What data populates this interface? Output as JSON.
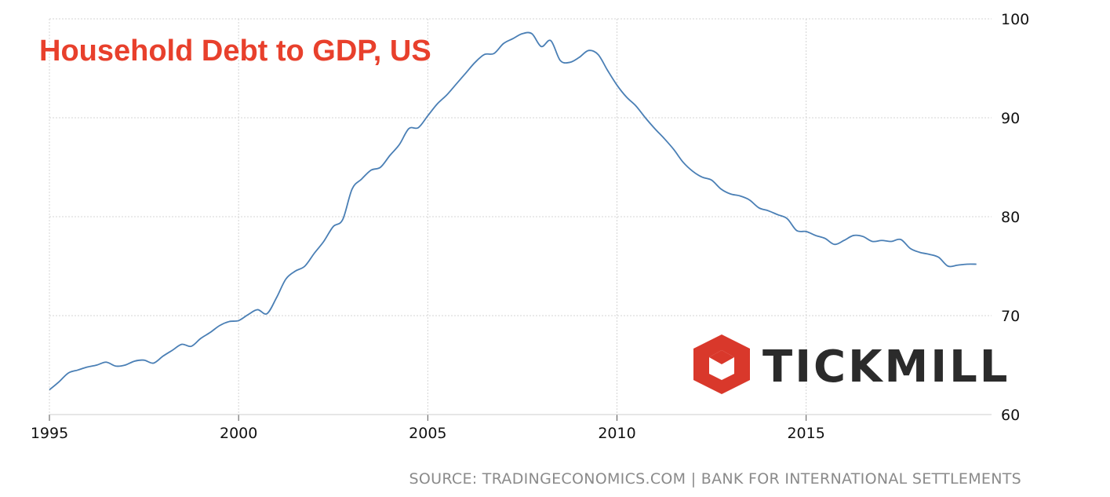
{
  "chart_data": {
    "type": "line",
    "title": "Household Debt to GDP, US",
    "xlabel": "",
    "ylabel": "",
    "x_ticks": [
      "1995",
      "2000",
      "2005",
      "2010",
      "2015"
    ],
    "y_ticks": [
      "60",
      "70",
      "80",
      "90",
      "100"
    ],
    "xlim": [
      1995,
      2019.9
    ],
    "ylim": [
      60,
      100
    ],
    "grid": true,
    "y_axis_side": "right",
    "series": [
      {
        "color": "#4a7fb5",
        "x": [
          1995.0,
          1995.25,
          1995.5,
          1995.75,
          1996.0,
          1996.25,
          1996.5,
          1996.75,
          1997.0,
          1997.25,
          1997.5,
          1997.75,
          1998.0,
          1998.25,
          1998.5,
          1998.75,
          1999.0,
          1999.25,
          1999.5,
          1999.75,
          2000.0,
          2000.25,
          2000.5,
          2000.75,
          2001.0,
          2001.25,
          2001.5,
          2001.75,
          2002.0,
          2002.25,
          2002.5,
          2002.75,
          2003.0,
          2003.25,
          2003.5,
          2003.75,
          2004.0,
          2004.25,
          2004.5,
          2004.75,
          2005.0,
          2005.25,
          2005.5,
          2005.75,
          2006.0,
          2006.25,
          2006.5,
          2006.75,
          2007.0,
          2007.25,
          2007.5,
          2007.75,
          2008.0,
          2008.25,
          2008.5,
          2008.75,
          2009.0,
          2009.25,
          2009.5,
          2009.75,
          2010.0,
          2010.25,
          2010.5,
          2010.75,
          2011.0,
          2011.25,
          2011.5,
          2011.75,
          2012.0,
          2012.25,
          2012.5,
          2012.75,
          2013.0,
          2013.25,
          2013.5,
          2013.75,
          2014.0,
          2014.25,
          2014.5,
          2014.75,
          2015.0,
          2015.25,
          2015.5,
          2015.75,
          2016.0,
          2016.25,
          2016.5,
          2016.75,
          2017.0,
          2017.25,
          2017.5,
          2017.75,
          2018.0,
          2018.25,
          2018.5,
          2018.75,
          2019.0,
          2019.25,
          2019.5
        ],
        "values": [
          62.5,
          63.3,
          64.2,
          64.5,
          64.8,
          65.0,
          65.3,
          64.9,
          65.0,
          65.4,
          65.5,
          65.2,
          65.9,
          66.5,
          67.1,
          66.9,
          67.7,
          68.3,
          69.0,
          69.4,
          69.5,
          70.1,
          70.6,
          70.2,
          71.8,
          73.7,
          74.5,
          75.0,
          76.3,
          77.5,
          79.0,
          79.7,
          82.8,
          83.8,
          84.7,
          85.0,
          86.2,
          87.3,
          88.9,
          89.0,
          90.2,
          91.4,
          92.3,
          93.4,
          94.5,
          95.6,
          96.4,
          96.5,
          97.5,
          98.0,
          98.5,
          98.5,
          97.2,
          97.8,
          95.8,
          95.6,
          96.1,
          96.8,
          96.4,
          94.8,
          93.3,
          92.1,
          91.2,
          90.0,
          88.9,
          87.9,
          86.8,
          85.5,
          84.6,
          84.0,
          83.7,
          82.8,
          82.3,
          82.1,
          81.7,
          80.9,
          80.6,
          80.2,
          79.8,
          78.6,
          78.5,
          78.1,
          77.8,
          77.2,
          77.6,
          78.1,
          78.0,
          77.5,
          77.6,
          77.5,
          77.7,
          76.8,
          76.4,
          76.2,
          75.9,
          75.0,
          75.1,
          75.2,
          75.2
        ]
      }
    ]
  },
  "source_text": "SOURCE: TRADINGECONOMICS.COM | BANK FOR INTERNATIONAL SETTLEMENTS",
  "logo": {
    "text": "TICKMILL",
    "icon": "tickmill-hexagon-icon",
    "icon_color": "#d9382b"
  },
  "colors": {
    "title": "#e8402c",
    "grid": "#d4d4d4",
    "axis": "#555555"
  }
}
